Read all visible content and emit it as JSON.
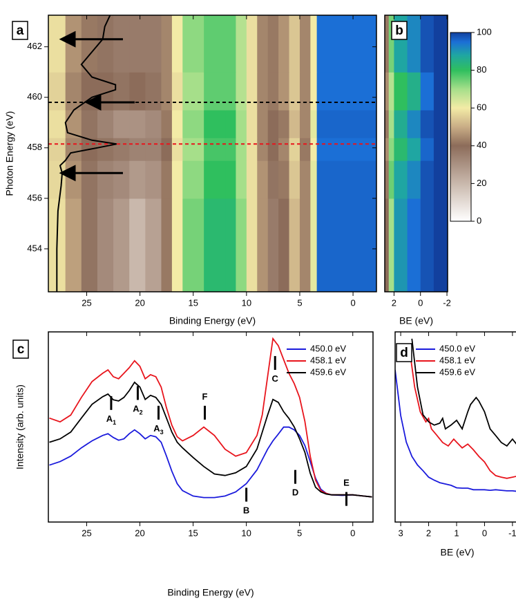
{
  "colorbar": {
    "lim": [
      0,
      100
    ],
    "ticks": [
      0,
      20,
      40,
      60,
      80,
      100
    ],
    "scale": [
      [
        0,
        "#ffffff"
      ],
      [
        20,
        "#c9b8ac"
      ],
      [
        40,
        "#8c6c5a"
      ],
      [
        50,
        "#c9ad86"
      ],
      [
        60,
        "#f3eba6"
      ],
      [
        70,
        "#a6df8a"
      ],
      [
        80,
        "#2fbf5e"
      ],
      [
        88,
        "#1fa6a2"
      ],
      [
        95,
        "#1b6fd6"
      ],
      [
        100,
        "#12409e"
      ]
    ]
  },
  "chart_data": [
    {
      "type": "heatmap",
      "panel": "a",
      "xlabel": "Binding Energy (eV)",
      "ylabel": "Photon Energy (eV)",
      "xlim": [
        28.6,
        -2.2
      ],
      "ylim": [
        452.3,
        463.25
      ],
      "xticks": [
        25,
        20,
        15,
        10,
        5,
        0
      ],
      "yticks": [
        454,
        456,
        458,
        460,
        462
      ],
      "x_edges": [
        28.6,
        27,
        25.5,
        24,
        22.5,
        21,
        19.5,
        18,
        17,
        16,
        14,
        12,
        11,
        10,
        9,
        8,
        7,
        6,
        5,
        4,
        3.4,
        -2.2
      ],
      "y_edges": [
        452.3,
        456,
        457.5,
        458.4,
        459.5,
        461,
        463.25
      ],
      "z": [
        [
          58,
          48,
          38,
          32,
          28,
          20,
          26,
          42,
          60,
          74,
          82,
          82,
          72,
          58,
          46,
          36,
          40,
          52,
          44,
          62,
          96
        ],
        [
          57,
          46,
          38,
          34,
          32,
          28,
          30,
          42,
          60,
          72,
          80,
          80,
          70,
          58,
          46,
          38,
          42,
          54,
          44,
          62,
          96
        ],
        [
          56,
          44,
          40,
          38,
          36,
          34,
          34,
          40,
          58,
          70,
          78,
          78,
          70,
          58,
          44,
          40,
          44,
          56,
          42,
          60,
          95
        ],
        [
          58,
          46,
          38,
          34,
          30,
          30,
          32,
          42,
          60,
          72,
          80,
          80,
          70,
          58,
          44,
          40,
          42,
          52,
          44,
          62,
          96
        ],
        [
          56,
          44,
          40,
          40,
          38,
          40,
          38,
          44,
          58,
          70,
          76,
          76,
          68,
          58,
          44,
          42,
          46,
          54,
          44,
          60,
          95
        ],
        [
          58,
          46,
          42,
          38,
          36,
          36,
          36,
          44,
          60,
          72,
          76,
          76,
          68,
          58,
          44,
          42,
          46,
          54,
          44,
          60,
          95
        ]
      ],
      "profile": {
        "color": "#000000",
        "photon_energy": [
          452.3,
          454,
          455.5,
          456.5,
          457,
          457.3,
          457.5,
          457.8,
          458,
          458.15,
          458.3,
          458.6,
          459,
          459.5,
          460,
          460.3,
          460.5,
          460.8,
          461.3,
          461.8,
          462.3,
          462.8,
          463.25
        ],
        "position": [
          27.8,
          27.8,
          27.7,
          27.4,
          27.3,
          27.5,
          27,
          26.5,
          24,
          22.2,
          24.5,
          26.8,
          27,
          26.2,
          24.5,
          22.3,
          22.3,
          24.5,
          25.5,
          24.5,
          23.5,
          23.3,
          22.8
        ]
      },
      "arrows": [
        {
          "y": 462.3,
          "from": 21.6,
          "to": 27.2
        },
        {
          "y": 459.8,
          "from": 20.5,
          "to": 24.8
        },
        {
          "y": 457,
          "from": 21.6,
          "to": 27.2
        }
      ],
      "hlines": [
        {
          "value": 459.8,
          "color": "#000000"
        },
        {
          "value": 458.15,
          "color": "#e8141c"
        }
      ]
    },
    {
      "type": "heatmap",
      "panel": "b",
      "xlabel": "BE (eV)",
      "xlim": [
        2.7,
        -2.05
      ],
      "ylim": [
        452.3,
        463.25
      ],
      "xticks": [
        2,
        0,
        -2
      ],
      "x_edges": [
        2.7,
        2.4,
        2,
        1,
        0,
        -1,
        -2.05
      ],
      "y_edges": [
        452.3,
        456,
        457.5,
        458.4,
        459.5,
        461,
        463.25
      ],
      "z": [
        [
          40,
          70,
          90,
          95,
          98,
          100
        ],
        [
          42,
          75,
          88,
          92,
          98,
          100
        ],
        [
          45,
          72,
          82,
          88,
          96,
          100
        ],
        [
          42,
          70,
          86,
          92,
          98,
          100
        ],
        [
          45,
          68,
          80,
          85,
          95,
          100
        ],
        [
          42,
          74,
          88,
          92,
          98,
          100
        ]
      ]
    },
    {
      "type": "line",
      "panel": "c",
      "xlabel": "Binding Energy (eV)",
      "ylabel": "Intensity (arb. units)",
      "xlim": [
        28.6,
        -1.9
      ],
      "ylim": [
        -12,
        100
      ],
      "xticks": [
        25,
        20,
        15,
        10,
        5,
        0
      ],
      "legend": "upper right",
      "x": [
        28.5,
        27.5,
        26.5,
        25.5,
        24.5,
        23.5,
        23,
        22.5,
        22,
        21.5,
        21,
        20.5,
        20,
        19.5,
        19,
        18.5,
        18,
        17.5,
        17,
        16.5,
        16,
        15,
        14,
        13,
        12,
        11,
        10,
        9,
        8.5,
        8,
        7.5,
        7,
        6.5,
        6,
        5.5,
        5,
        4.5,
        4,
        3.5,
        3,
        2.5,
        2,
        1,
        0,
        -1,
        -1.8
      ],
      "series": [
        {
          "name": "450.0 eV",
          "color": "#1a1adc",
          "values": [
            21.5,
            23.6,
            26.8,
            31.7,
            35.8,
            39,
            40,
            37.8,
            36.2,
            37,
            40,
            42.3,
            40,
            37,
            39,
            38.2,
            35,
            26.8,
            17.9,
            10.6,
            6.5,
            3.3,
            2.4,
            2.4,
            3.3,
            5.7,
            10.6,
            18.7,
            24.8,
            30.9,
            35.8,
            39.8,
            43.9,
            43.9,
            42.3,
            39,
            33,
            23.6,
            13.8,
            7.3,
            4.9,
            4,
            3.7,
            4,
            3.3,
            2.8
          ]
        },
        {
          "name": "458.1 eV",
          "color": "#e8141c",
          "values": [
            49.2,
            47,
            51,
            61.4,
            70.7,
            75.6,
            77.6,
            73.6,
            72.4,
            75.6,
            78.9,
            83,
            79.7,
            72.4,
            74.8,
            73.6,
            67.5,
            55.3,
            45,
            38.2,
            35.8,
            39,
            43.9,
            39,
            30.9,
            26.8,
            28.9,
            39,
            51.2,
            73.6,
            96,
            91.9,
            83.7,
            75.6,
            69.5,
            61.4,
            47.2,
            26.8,
            12.6,
            6.5,
            4.9,
            4,
            4,
            4,
            3.3,
            2.8
          ]
        },
        {
          "name": "459.6 eV",
          "color": "#000000",
          "values": [
            35,
            37,
            41,
            49.2,
            57.3,
            61.8,
            63.4,
            60,
            59.3,
            61.4,
            65.4,
            70.3,
            67.5,
            60.2,
            62.6,
            61.4,
            57.3,
            49.2,
            41,
            35,
            31.7,
            26,
            20.7,
            16.3,
            15.4,
            17,
            20.7,
            31,
            41,
            51,
            60.2,
            58.5,
            53,
            49,
            44,
            37,
            29,
            16.7,
            8.5,
            5.7,
            4.5,
            4,
            4,
            4,
            3.3,
            2.8
          ]
        }
      ],
      "features": [
        {
          "label": "A",
          "sub": "1",
          "x": 22.7,
          "y": 58.1,
          "label_side": "below"
        },
        {
          "label": "A",
          "sub": "2",
          "x": 20.2,
          "y": 64,
          "label_side": "below"
        },
        {
          "label": "A",
          "sub": "3",
          "x": 18.25,
          "y": 52.4,
          "label_side": "below"
        },
        {
          "label": "F",
          "x": 13.9,
          "y": 52.4,
          "label_side": "above"
        },
        {
          "label": "C",
          "x": 7.3,
          "y": 81.7,
          "label_side": "below"
        },
        {
          "label": "D",
          "x": 5.4,
          "y": 14.6,
          "label_side": "below"
        },
        {
          "label": "B",
          "x": 10,
          "y": 4.1,
          "label_side": "below"
        },
        {
          "label": "E",
          "x": 0.6,
          "y": 1.6,
          "label_side": "above"
        }
      ]
    },
    {
      "type": "line",
      "panel": "d",
      "xlabel": "BE (eV)",
      "xlim": [
        3.2,
        -1.25
      ],
      "ylim": [
        0,
        100
      ],
      "xticks": [
        3,
        2,
        1,
        0,
        -1
      ],
      "legend": "upper left",
      "series": [
        {
          "name": "450.0 eV",
          "color": "#1a1adc",
          "x": [
            3.2,
            3,
            2.8,
            2.6,
            2.4,
            2.2,
            2,
            1.8,
            1.6,
            1.4,
            1.2,
            1,
            0.8,
            0.6,
            0.4,
            0.2,
            0,
            -0.2,
            -0.4,
            -0.6,
            -0.8,
            -1,
            -1.25
          ],
          "values": [
            80,
            56,
            42,
            34.5,
            30,
            27,
            23.6,
            22,
            20.7,
            20,
            19.3,
            18,
            17.8,
            17.8,
            17,
            17,
            17,
            16.7,
            17,
            16.7,
            16.4,
            16.4,
            16
          ]
        },
        {
          "name": "458.1 eV",
          "color": "#e8141c",
          "x": [
            2.7,
            2.5,
            2.3,
            2.1,
            2,
            1.9,
            1.7,
            1.5,
            1.3,
            1.1,
            1,
            0.8,
            0.6,
            0.4,
            0.2,
            0,
            -0.2,
            -0.4,
            -0.6,
            -0.8,
            -1,
            -1.25
          ],
          "values": [
            92.7,
            71,
            58,
            52.7,
            54.5,
            49,
            45.5,
            41.8,
            40,
            43.6,
            42,
            39,
            41,
            38,
            34.5,
            31.6,
            27,
            24.4,
            23.6,
            23,
            23.6,
            24.4
          ]
        },
        {
          "name": "459.6 eV",
          "color": "#000000",
          "x": [
            2.6,
            2.4,
            2.2,
            2,
            1.8,
            1.6,
            1.5,
            1.4,
            1.2,
            1,
            0.8,
            0.6,
            0.5,
            0.3,
            0.2,
            0,
            -0.2,
            -0.4,
            -0.6,
            -0.8,
            -1,
            -1.1,
            -1.25
          ],
          "values": [
            96.4,
            71,
            56.4,
            52.7,
            51,
            52,
            54.5,
            49,
            51,
            53.5,
            49,
            58,
            61.8,
            65.5,
            63.6,
            58,
            49,
            45.5,
            41.8,
            40,
            43.6,
            41.8,
            38.9
          ]
        }
      ]
    }
  ]
}
